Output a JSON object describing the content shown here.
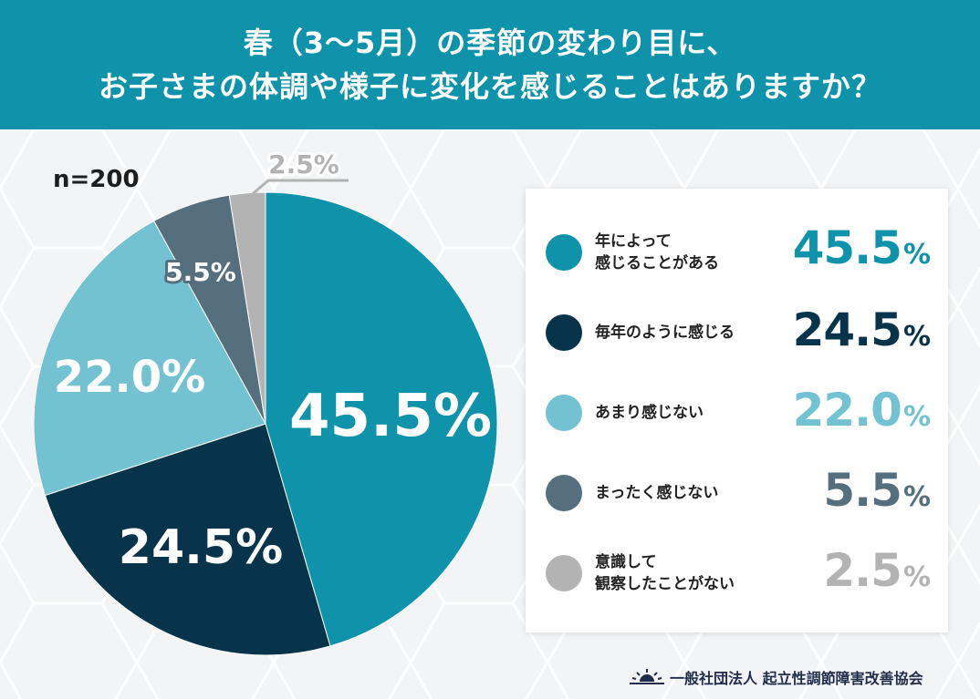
{
  "header": {
    "line1": "春（3〜5月）の季節の変わり目に、",
    "line2": "お子さまの体調や様子に変化を感じることはありますか？"
  },
  "sample": "n=200",
  "colors": {
    "header_bg": "#0e93ab",
    "series": [
      "#0e93ab",
      "#07344b",
      "#72c2d2",
      "#566f7f",
      "#b3b3b3"
    ]
  },
  "chart_data": {
    "type": "pie",
    "title": "春（3〜5月）の季節の変わり目に、お子さまの体調や様子に変化を感じることはありますか？",
    "unit": "%",
    "slices": [
      {
        "label": "年によって感じることがある",
        "value": 45.5,
        "value_label": "45.5%"
      },
      {
        "label": "毎年のように感じる",
        "value": 24.5,
        "value_label": "24.5%"
      },
      {
        "label": "あまり感じない",
        "value": 22.0,
        "value_label": "22.0%"
      },
      {
        "label": "まったく感じない",
        "value": 5.5,
        "value_label": "5.5%"
      },
      {
        "label": "意識して観察したことがない",
        "value": 2.5,
        "value_label": "2.5%"
      }
    ]
  },
  "legend": [
    {
      "text": "年によって\n感じることがある",
      "value": "45.5",
      "pct": "%"
    },
    {
      "text": "毎年のように感じる",
      "value": "24.5",
      "pct": "%"
    },
    {
      "text": "あまり感じない",
      "value": "22.0",
      "pct": "%"
    },
    {
      "text": "まったく感じない",
      "value": "5.5",
      "pct": "%"
    },
    {
      "text": "意識して\n観察したことがない",
      "value": "2.5",
      "pct": "%"
    }
  ],
  "footer": {
    "org": "一般社団法人 起立性調節障害改善協会",
    "logo_icon": "sunrise-icon"
  }
}
